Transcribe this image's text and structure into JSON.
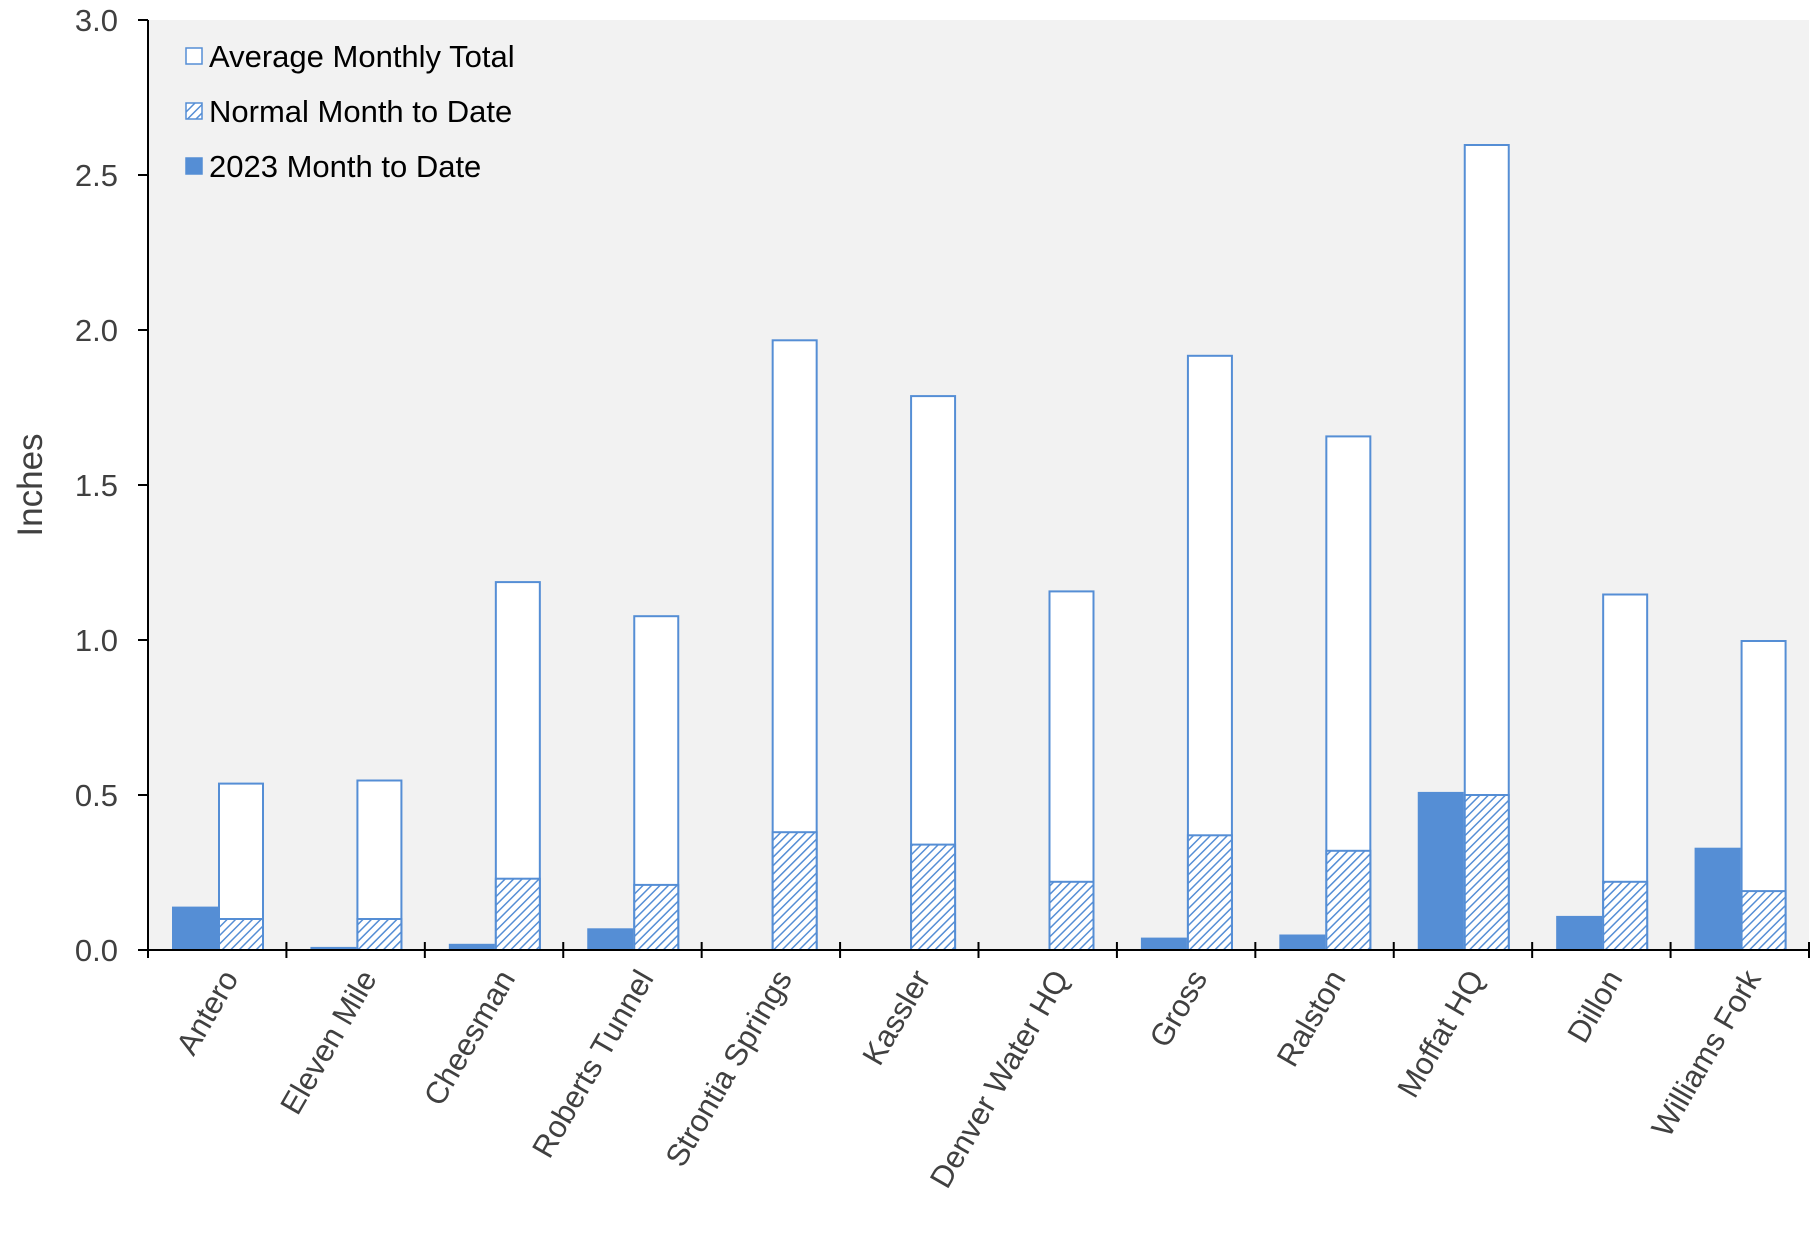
{
  "chart_data": {
    "type": "bar",
    "title": "",
    "xlabel": "",
    "ylabel": "Inches",
    "ylim": [
      0,
      3.0
    ],
    "yticks": [
      "0.0",
      "0.5",
      "1.0",
      "1.5",
      "2.0",
      "2.5",
      "3.0"
    ],
    "grid": false,
    "legend_position": "top-left",
    "categories": [
      "Antero",
      "Eleven Mile",
      "Cheesman",
      "Roberts Tunnel",
      "Strontia Springs",
      "Kassler",
      "Denver Water HQ",
      "Gross",
      "Ralston",
      "Moffat HQ",
      "Dillon",
      "Williams Fork"
    ],
    "series": [
      {
        "name": "2023 Month to Date",
        "values": [
          0.14,
          0.01,
          0.02,
          0.07,
          0.0,
          0.0,
          0.0,
          0.04,
          0.05,
          0.51,
          0.11,
          0.33
        ]
      },
      {
        "name": "Normal Month to Date",
        "values": [
          0.1,
          0.1,
          0.23,
          0.21,
          0.38,
          0.34,
          0.22,
          0.37,
          0.32,
          0.5,
          0.22,
          0.19
        ]
      },
      {
        "name": "Average Monthly Total",
        "values": [
          0.54,
          0.55,
          1.19,
          1.08,
          1.97,
          1.79,
          1.16,
          1.92,
          1.66,
          2.6,
          1.15,
          1.0
        ]
      }
    ],
    "legend_order": [
      "Average Monthly Total",
      "Normal Month to Date",
      "2023 Month to Date"
    ],
    "colors": {
      "solid": "#558ED5",
      "outline": "#558ED5",
      "hatch": "#558ED5",
      "plot_background": "#F2F2F2",
      "axis": "#000000",
      "text": "#404040"
    }
  }
}
